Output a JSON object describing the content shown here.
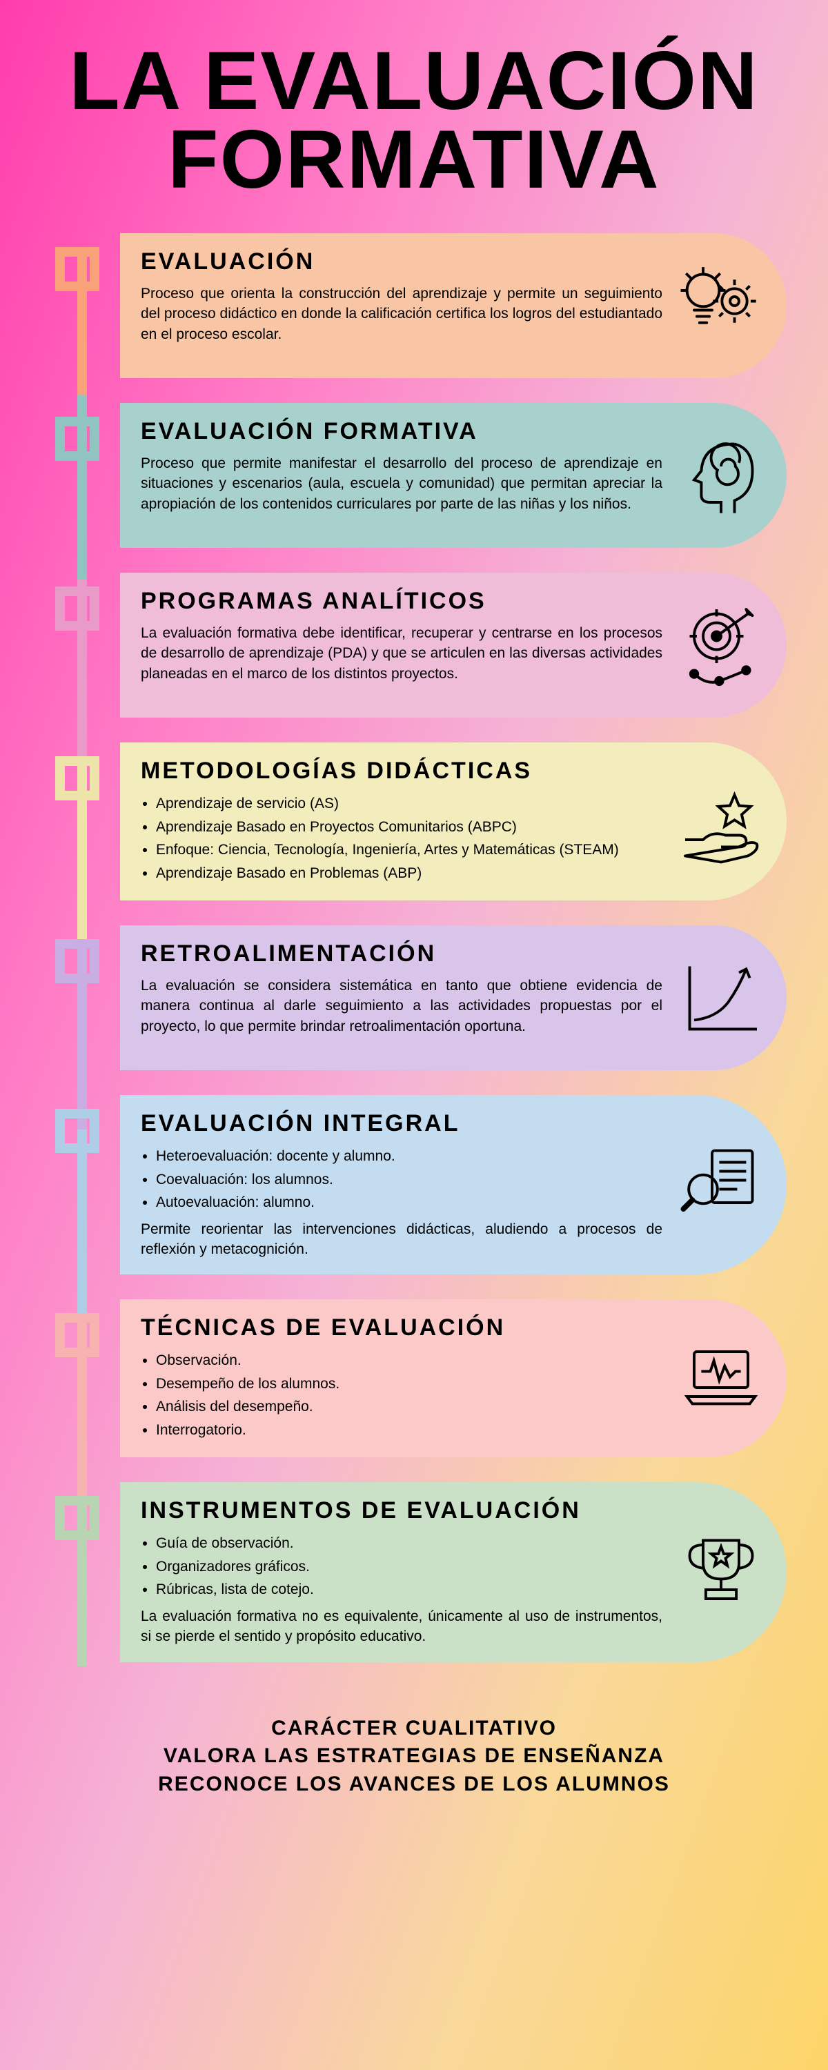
{
  "title": "LA EVALUACIÓN FORMATIVA",
  "footer": {
    "line1": "CARÁCTER CUALITATIVO",
    "line2": "VALORA LAS ESTRATEGIAS DE ENSEÑANZA",
    "line3": "RECONOCE LOS AVANCES DE LOS ALUMNOS"
  },
  "sections": [
    {
      "title": "EVALUACIÓN",
      "body": "Proceso que orienta la construcción del aprendizaje y permite un seguimiento del proceso didáctico en donde la calificación certifica los logros del estudiantado en el proceso escolar.",
      "color": "#f9c6a5",
      "node_color": "#f9a27a",
      "icon": "lightbulb-gear"
    },
    {
      "title": "EVALUACIÓN FORMATIVA",
      "body": "Proceso que permite manifestar el desarrollo del proceso de aprendizaje en situaciones y escenarios (aula, escuela y comunidad) que permitan apreciar la apropiación de los contenidos curriculares por parte de las niñas y los niños.",
      "color": "#a8d0cc",
      "node_color": "#8fc4c0",
      "icon": "head-spiral"
    },
    {
      "title": "PROGRAMAS ANALÍTICOS",
      "body": "La evaluación formativa debe identificar, recuperar y centrarse en los procesos de desarrollo de aprendizaje (PDA) y que se articulen en las diversas actividades planeadas en el marco de los distintos proyectos.",
      "color": "#f0bdd9",
      "node_color": "#e89bc8",
      "icon": "target"
    },
    {
      "title": "METODOLOGÍAS DIDÁCTICAS",
      "list": [
        "Aprendizaje de servicio (AS)",
        "Aprendizaje Basado en Proyectos Comunitarios (ABPC)",
        "Enfoque: Ciencia, Tecnología, Ingeniería, Artes y Matemáticas (STEAM)",
        "Aprendizaje Basado en Problemas (ABP)"
      ],
      "color": "#f3edbe",
      "node_color": "#eee3a8",
      "icon": "hand-star"
    },
    {
      "title": "RETROALIMENTACIÓN",
      "body": "La evaluación se considera sistemática en tanto que obtiene evidencia de manera continua al darle seguimiento a las actividades propuestas por el proyecto, lo que permite brindar retroalimentación oportuna.",
      "color": "#d9c5ea",
      "node_color": "#c9aee3",
      "icon": "growth-arrow"
    },
    {
      "title": "EVALUACIÓN INTEGRAL",
      "list": [
        "Heteroevaluación: docente y alumno.",
        "Coevaluación: los alumnos.",
        "Autoevaluación: alumno."
      ],
      "note": "Permite reorientar las intervenciones didácticas, aludiendo a procesos de reflexión y metacognición.",
      "color": "#c3dcf0",
      "node_color": "#aecde6",
      "icon": "magnify-doc"
    },
    {
      "title": "TÉCNICAS DE EVALUACIÓN",
      "list": [
        "Observación.",
        "Desempeño de los alumnos.",
        "Análisis del desempeño.",
        "Interrogatorio."
      ],
      "color": "#fbc9c7",
      "node_color": "#f6b3b0",
      "icon": "laptop-pulse"
    },
    {
      "title": "INSTRUMENTOS DE EVALUACIÓN",
      "list": [
        "Guía de observación.",
        "Organizadores gráficos.",
        "Rúbricas, lista de cotejo."
      ],
      "note": "La evaluación formativa no es equivalente, únicamente al uso de instrumentos, si se pierde el sentido y propósito educativo.",
      "color": "#cbe1c7",
      "node_color": "#b8d4b3",
      "icon": "trophy-star"
    }
  ]
}
